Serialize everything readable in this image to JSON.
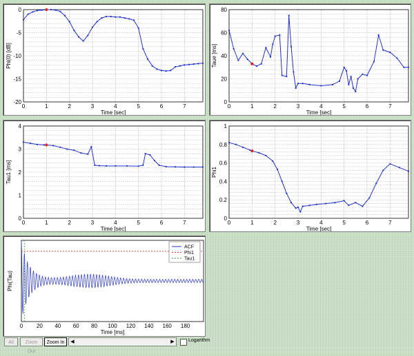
{
  "chart_data": [
    {
      "id": "phi0",
      "type": "line",
      "xlabel": "Time [sec]",
      "ylabel": "Phi(0) [dB]",
      "xlim": [
        0,
        7.8
      ],
      "ylim": [
        -20,
        0
      ],
      "xticks": [
        0,
        1,
        2,
        3,
        4,
        5,
        6,
        7
      ],
      "yticks": [
        -20,
        -15,
        -10,
        -5,
        0
      ],
      "grid": true,
      "marker_x": 1.0,
      "x": [
        0,
        0.2,
        0.4,
        0.6,
        0.8,
        1.0,
        1.2,
        1.4,
        1.6,
        1.8,
        2.0,
        2.2,
        2.4,
        2.6,
        2.8,
        3.0,
        3.2,
        3.4,
        3.6,
        3.8,
        4.0,
        4.2,
        4.4,
        4.6,
        4.8,
        5.0,
        5.2,
        5.4,
        5.6,
        5.8,
        6.0,
        6.2,
        6.4,
        6.6,
        6.8,
        7.0,
        7.2,
        7.4,
        7.6,
        7.8
      ],
      "y": [
        -2.2,
        -1.0,
        -0.5,
        -0.2,
        -0.1,
        0,
        0,
        -0.1,
        -0.4,
        -1.3,
        -2.6,
        -4.5,
        -5.9,
        -6.8,
        -5.6,
        -3.8,
        -2.6,
        -1.8,
        -1.5,
        -1.5,
        -1.6,
        -1.6,
        -1.8,
        -2.0,
        -2.3,
        -4.0,
        -8.5,
        -10.7,
        -12.2,
        -12.9,
        -13.2,
        -13.3,
        -13.2,
        -12.4,
        -12.2,
        -12.0,
        -11.9,
        -11.8,
        -11.7,
        -11.6
      ]
    },
    {
      "id": "taue",
      "type": "line",
      "xlabel": "Time [sec]",
      "ylabel": "Taue [ms]",
      "xlim": [
        0,
        7.8
      ],
      "ylim": [
        0,
        80
      ],
      "xticks": [
        0,
        1,
        2,
        3,
        4,
        5,
        6,
        7
      ],
      "yticks": [
        0,
        20,
        40,
        60,
        80
      ],
      "grid": true,
      "marker_x": 1.0,
      "x": [
        0,
        0.2,
        0.4,
        0.6,
        0.8,
        1.0,
        1.2,
        1.4,
        1.6,
        1.8,
        1.9,
        2.0,
        2.2,
        2.3,
        2.5,
        2.6,
        2.7,
        2.8,
        2.9,
        3.0,
        3.2,
        3.5,
        4.0,
        4.5,
        4.8,
        5.0,
        5.1,
        5.2,
        5.3,
        5.4,
        5.5,
        5.6,
        5.8,
        6.0,
        6.3,
        6.5,
        6.7,
        7.0,
        7.3,
        7.6,
        7.8
      ],
      "y": [
        62,
        46,
        36,
        42,
        37,
        33,
        31,
        33,
        47,
        39,
        50,
        57,
        58,
        23,
        22,
        75,
        48,
        26,
        12,
        16,
        16,
        15,
        14,
        15,
        18,
        30,
        27,
        15,
        22,
        12,
        9,
        20,
        24,
        23,
        35,
        58,
        45,
        43,
        38,
        30,
        30
      ]
    },
    {
      "id": "tau1",
      "type": "line",
      "xlabel": "Time [sec]",
      "ylabel": "Tau1 [ms]",
      "xlim": [
        0,
        7.8
      ],
      "ylim": [
        0,
        4
      ],
      "xticks": [
        0,
        1,
        2,
        3,
        4,
        5,
        6,
        7
      ],
      "yticks": [
        0,
        1,
        2,
        3,
        4
      ],
      "grid": true,
      "marker_x": 1.0,
      "x": [
        0,
        0.3,
        0.6,
        0.9,
        1.0,
        1.3,
        1.6,
        1.9,
        2.2,
        2.5,
        2.8,
        2.95,
        3.1,
        3.3,
        3.6,
        4.0,
        4.5,
        5.0,
        5.2,
        5.3,
        5.5,
        5.7,
        5.9,
        6.2,
        6.6,
        7.0,
        7.4,
        7.8
      ],
      "y": [
        3.3,
        3.25,
        3.2,
        3.18,
        3.18,
        3.15,
        3.08,
        3.0,
        2.95,
        2.83,
        2.78,
        3.1,
        2.3,
        2.28,
        2.27,
        2.27,
        2.27,
        2.26,
        2.3,
        2.8,
        2.75,
        2.5,
        2.3,
        2.24,
        2.23,
        2.22,
        2.22,
        2.22
      ]
    },
    {
      "id": "phi1",
      "type": "line",
      "xlabel": "Time [sec]",
      "ylabel": "Phi1",
      "xlim": [
        0,
        7.8
      ],
      "ylim": [
        0,
        1
      ],
      "xticks": [
        0,
        1,
        2,
        3,
        4,
        5,
        6,
        7
      ],
      "yticks": [
        0,
        0.2,
        0.4,
        0.6,
        0.8,
        1
      ],
      "grid": true,
      "marker_x": 1.0,
      "x": [
        0,
        0.3,
        0.6,
        0.9,
        1.0,
        1.3,
        1.6,
        1.9,
        2.1,
        2.3,
        2.5,
        2.7,
        2.9,
        3.0,
        3.1,
        3.2,
        3.5,
        3.8,
        4.2,
        4.6,
        5.0,
        5.2,
        5.5,
        5.8,
        6.1,
        6.4,
        6.7,
        7.0,
        7.4,
        7.8
      ],
      "y": [
        0.82,
        0.8,
        0.77,
        0.74,
        0.73,
        0.71,
        0.68,
        0.62,
        0.53,
        0.4,
        0.27,
        0.17,
        0.11,
        0.12,
        0.07,
        0.13,
        0.14,
        0.15,
        0.16,
        0.17,
        0.19,
        0.14,
        0.17,
        0.13,
        0.22,
        0.38,
        0.52,
        0.59,
        0.55,
        0.51
      ]
    },
    {
      "id": "acf",
      "type": "line",
      "xlabel": "Time [ms]",
      "ylabel": "Phi(Tau)",
      "xlim": [
        0,
        200
      ],
      "ylim": [
        -1,
        1
      ],
      "xticks": [
        0,
        20,
        40,
        60,
        80,
        100,
        120,
        140,
        160,
        180
      ],
      "yticks": [],
      "grid": false,
      "legend": [
        "ACF",
        "Phi1",
        "Tau1"
      ],
      "legend_position": "top-right",
      "phi1_level": 0.73,
      "tau1_ms": 3.2
    }
  ],
  "controls": {
    "all_label": "All",
    "zoom_out_label": "Zoom Out",
    "zoom_in_label": "Zoom In",
    "scroll_left": "◀",
    "scroll_right": "▶",
    "log_label": "Logarithm"
  },
  "colors": {
    "line": "#2233cc",
    "marker": "#dd2222",
    "grid": "#bcbcbc",
    "phi1": "#e03030",
    "tau1": "#30a030"
  }
}
